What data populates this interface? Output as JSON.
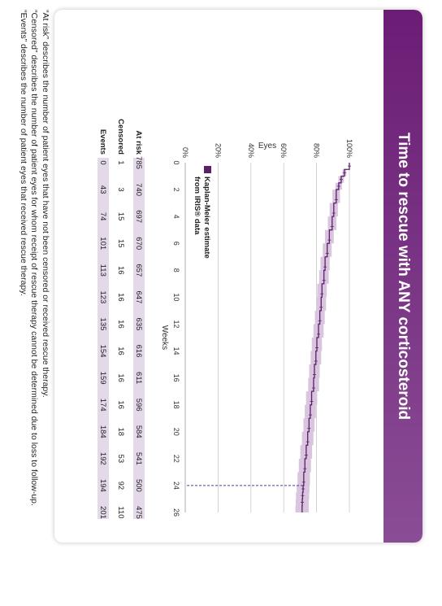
{
  "title": "Time to rescue with ANY corticosteroid",
  "legend_label": "Kaplan-Meier estimate from IRIS® data",
  "colors": {
    "curve": "#5b1f6b",
    "ci_band": "#d9c6de",
    "table_band": "#e4d9e9",
    "title_bg": "#6b1d75",
    "reference_line": "#4a3c8c"
  },
  "chart_data": {
    "type": "line",
    "title": "Time to rescue with ANY corticosteroid",
    "xlabel": "Weeks",
    "ylabel": "Eyes",
    "xlim": [
      0,
      26
    ],
    "ylim": [
      0,
      100
    ],
    "x_ticks": [
      0,
      2,
      4,
      6,
      8,
      10,
      12,
      14,
      16,
      18,
      20,
      22,
      24,
      26
    ],
    "y_ticks": [
      0,
      20,
      40,
      60,
      80,
      100
    ],
    "y_tick_labels": [
      "0%",
      "20%",
      "40%",
      "60%",
      "80%",
      "100%"
    ],
    "grid": "horizontal",
    "legend_position": "bottom-left",
    "series": [
      {
        "name": "Kaplan-Meier estimate from IRIS® data",
        "x": [
          0,
          0.5,
          1,
          1.5,
          2,
          3,
          4,
          5,
          6,
          7,
          8,
          9,
          10,
          11,
          12,
          13,
          14,
          15,
          16,
          17,
          18,
          19,
          20,
          21,
          22,
          23,
          24,
          24.5,
          25,
          25.5,
          26
        ],
        "y": [
          100,
          97,
          95,
          93.5,
          92,
          90.5,
          89.5,
          87.8,
          86.5,
          85.2,
          84.5,
          83.3,
          82.8,
          82,
          81.2,
          80.2,
          79.6,
          78.7,
          78.2,
          77,
          76.2,
          75.4,
          74.6,
          73.7,
          72.9,
          72.2,
          71.8,
          71.5,
          71.3,
          71.2,
          71.2
        ],
        "ci_lower": [
          100,
          95.8,
          93.3,
          91.5,
          89.7,
          88,
          86.9,
          85.1,
          83.8,
          82.4,
          81.6,
          80.4,
          79.8,
          79,
          78.1,
          77.1,
          76.4,
          75.5,
          74.9,
          73.6,
          72.8,
          72,
          71.1,
          70.1,
          69.2,
          68.4,
          67.9,
          67.5,
          67.3,
          67.1,
          67.1
        ],
        "ci_upper": [
          100,
          98.2,
          96.7,
          95.5,
          94.3,
          93,
          92.1,
          90.5,
          89.2,
          88,
          87.4,
          86.2,
          85.8,
          85,
          84.3,
          83.3,
          82.8,
          81.9,
          81.5,
          80.4,
          79.6,
          78.8,
          78.1,
          77.3,
          76.6,
          76,
          75.7,
          75.5,
          75.3,
          75.3,
          75.3
        ]
      }
    ],
    "reference_line": {
      "x": 24,
      "y": 71.8
    },
    "risk_table": {
      "weeks": [
        0,
        2,
        4,
        6,
        8,
        10,
        12,
        14,
        16,
        18,
        20,
        22,
        24,
        26
      ],
      "rows": [
        {
          "label": "At risk",
          "values": [
            "785",
            "740",
            "697",
            "670",
            "657",
            "647",
            "635",
            "616",
            "611",
            "596",
            "584",
            "541",
            "500",
            "475"
          ]
        },
        {
          "label": "Censored",
          "values": [
            "1",
            "3",
            "15",
            "15",
            "16",
            "16",
            "16",
            "16",
            "16",
            "16",
            "18",
            "53",
            "92",
            "110"
          ]
        },
        {
          "label": "Events",
          "values": [
            "0",
            "43",
            "74",
            "101",
            "113",
            "123",
            "135",
            "154",
            "159",
            "174",
            "184",
            "192",
            "194",
            "201"
          ]
        }
      ]
    }
  },
  "footnotes": [
    "“At risk” describes the number of patient eyes that have not been censored or received rescue therapy.",
    "“Censored” describes the number of patient eyes for whom receipt of rescue therapy cannot be determined due to loss to follow-up.",
    "“Events” describes the number of patient eyes that received rescue therapy."
  ]
}
